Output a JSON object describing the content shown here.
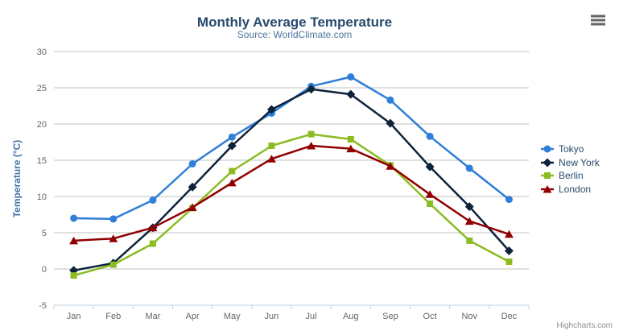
{
  "chart": {
    "title": "Monthly Average Temperature",
    "subtitle": "Source: WorldClimate.com",
    "y_axis_title": "Temperature (°C)",
    "credit": "Highcharts.com",
    "context_menu_icon": "hamburger"
  },
  "chart_data": {
    "type": "line",
    "title": "Monthly Average Temperature",
    "subtitle": "Source: WorldClimate.com",
    "xlabel": "",
    "ylabel": "Temperature (°C)",
    "ylim": [
      -5,
      30
    ],
    "ytick_step": 5,
    "yticks": [
      -5,
      0,
      5,
      10,
      15,
      20,
      25,
      30
    ],
    "grid": true,
    "legend_position": "right",
    "categories": [
      "Jan",
      "Feb",
      "Mar",
      "Apr",
      "May",
      "Jun",
      "Jul",
      "Aug",
      "Sep",
      "Oct",
      "Nov",
      "Dec"
    ],
    "series": [
      {
        "name": "Tokyo",
        "color": "#2f7ed8",
        "marker": "circle",
        "values": [
          7.0,
          6.9,
          9.5,
          14.5,
          18.2,
          21.5,
          25.2,
          26.5,
          23.3,
          18.3,
          13.9,
          9.6
        ]
      },
      {
        "name": "New York",
        "color": "#0d233a",
        "marker": "diamond",
        "values": [
          -0.2,
          0.8,
          5.7,
          11.3,
          17.0,
          22.0,
          24.8,
          24.1,
          20.1,
          14.1,
          8.6,
          2.5
        ]
      },
      {
        "name": "Berlin",
        "color": "#8bbc21",
        "marker": "square",
        "values": [
          -0.9,
          0.6,
          3.5,
          8.4,
          13.5,
          17.0,
          18.6,
          17.9,
          14.3,
          9.0,
          3.9,
          1.0
        ]
      },
      {
        "name": "London",
        "color": "#910000",
        "marker": "triangle",
        "values": [
          3.9,
          4.2,
          5.7,
          8.5,
          11.9,
          15.2,
          17.0,
          16.6,
          14.2,
          10.3,
          6.6,
          4.8
        ]
      }
    ],
    "axis_colors": {
      "gridline": "#C0C0C0",
      "axis_line": "#C0D0E0",
      "tick": "#C0D0E0",
      "label": "#666666"
    }
  }
}
